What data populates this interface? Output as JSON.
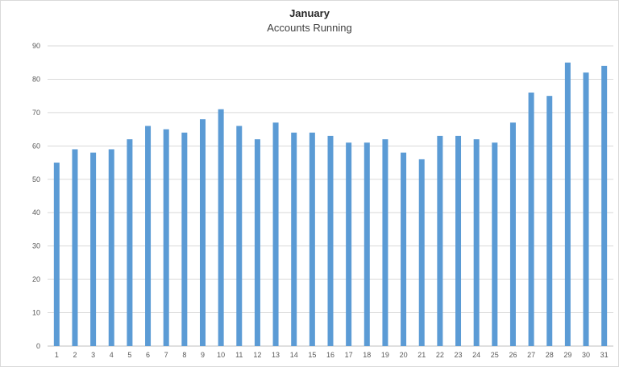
{
  "chart_data": {
    "type": "bar",
    "title": "January",
    "subtitle": "Accounts Running",
    "xlabel": "",
    "ylabel": "",
    "ylim": [
      0,
      90
    ],
    "yticks": [
      0,
      10,
      20,
      30,
      40,
      50,
      60,
      70,
      80,
      90
    ],
    "grid": true,
    "legend": "none",
    "bar_color": "#5b9bd5",
    "categories": [
      "1",
      "2",
      "3",
      "4",
      "5",
      "6",
      "7",
      "8",
      "9",
      "10",
      "11",
      "12",
      "13",
      "14",
      "15",
      "16",
      "17",
      "18",
      "19",
      "20",
      "21",
      "22",
      "23",
      "24",
      "25",
      "26",
      "27",
      "28",
      "29",
      "30",
      "31"
    ],
    "values": [
      55,
      59,
      58,
      59,
      62,
      66,
      65,
      64,
      68,
      71,
      66,
      62,
      67,
      64,
      64,
      63,
      61,
      61,
      62,
      58,
      56,
      63,
      63,
      62,
      61,
      67,
      76,
      75,
      85,
      82,
      84
    ]
  }
}
